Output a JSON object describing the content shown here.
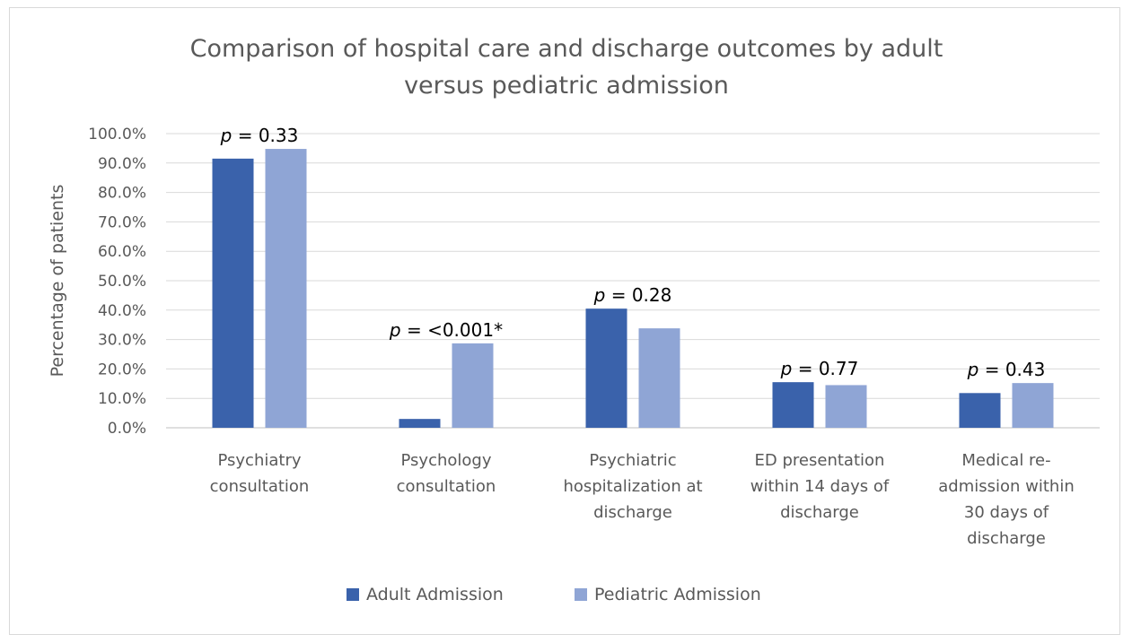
{
  "chart_data": {
    "type": "bar",
    "title_lines": [
      "Comparison of hospital care and discharge outcomes by adult",
      "versus pediatric admission"
    ],
    "ylabel": "Percentage of patients",
    "xlabel": "",
    "ylim": [
      0,
      100
    ],
    "ytick_step": 10,
    "ytick_labels": [
      "0.0%",
      "10.0%",
      "20.0%",
      "30.0%",
      "40.0%",
      "50.0%",
      "60.0%",
      "70.0%",
      "80.0%",
      "90.0%",
      "100.0%"
    ],
    "grid": true,
    "legend_position": "bottom",
    "categories": [
      [
        "Psychiatry",
        "consultation"
      ],
      [
        "Psychology",
        "consultation"
      ],
      [
        "Psychiatric",
        "hospitalization at",
        "discharge"
      ],
      [
        "ED presentation",
        "within 14 days of",
        "discharge"
      ],
      [
        "Medical re-",
        "admission within",
        "30 days of",
        "discharge"
      ]
    ],
    "series": [
      {
        "name": "Adult Admission",
        "color": "#3a62ab",
        "values": [
          91.5,
          3.0,
          40.5,
          15.5,
          11.8
        ]
      },
      {
        "name": "Pediatric Admission",
        "color": "#8fa5d5",
        "values": [
          94.8,
          28.7,
          33.8,
          14.5,
          15.2
        ]
      }
    ],
    "annotations": [
      {
        "p": "p",
        "text": " = 0.33"
      },
      {
        "p": "p",
        "text": " = <0.001*"
      },
      {
        "p": "p",
        "text": " = 0.28"
      },
      {
        "p": "p",
        "text": " = 0.77"
      },
      {
        "p": "p",
        "text": " = 0.43"
      }
    ]
  }
}
